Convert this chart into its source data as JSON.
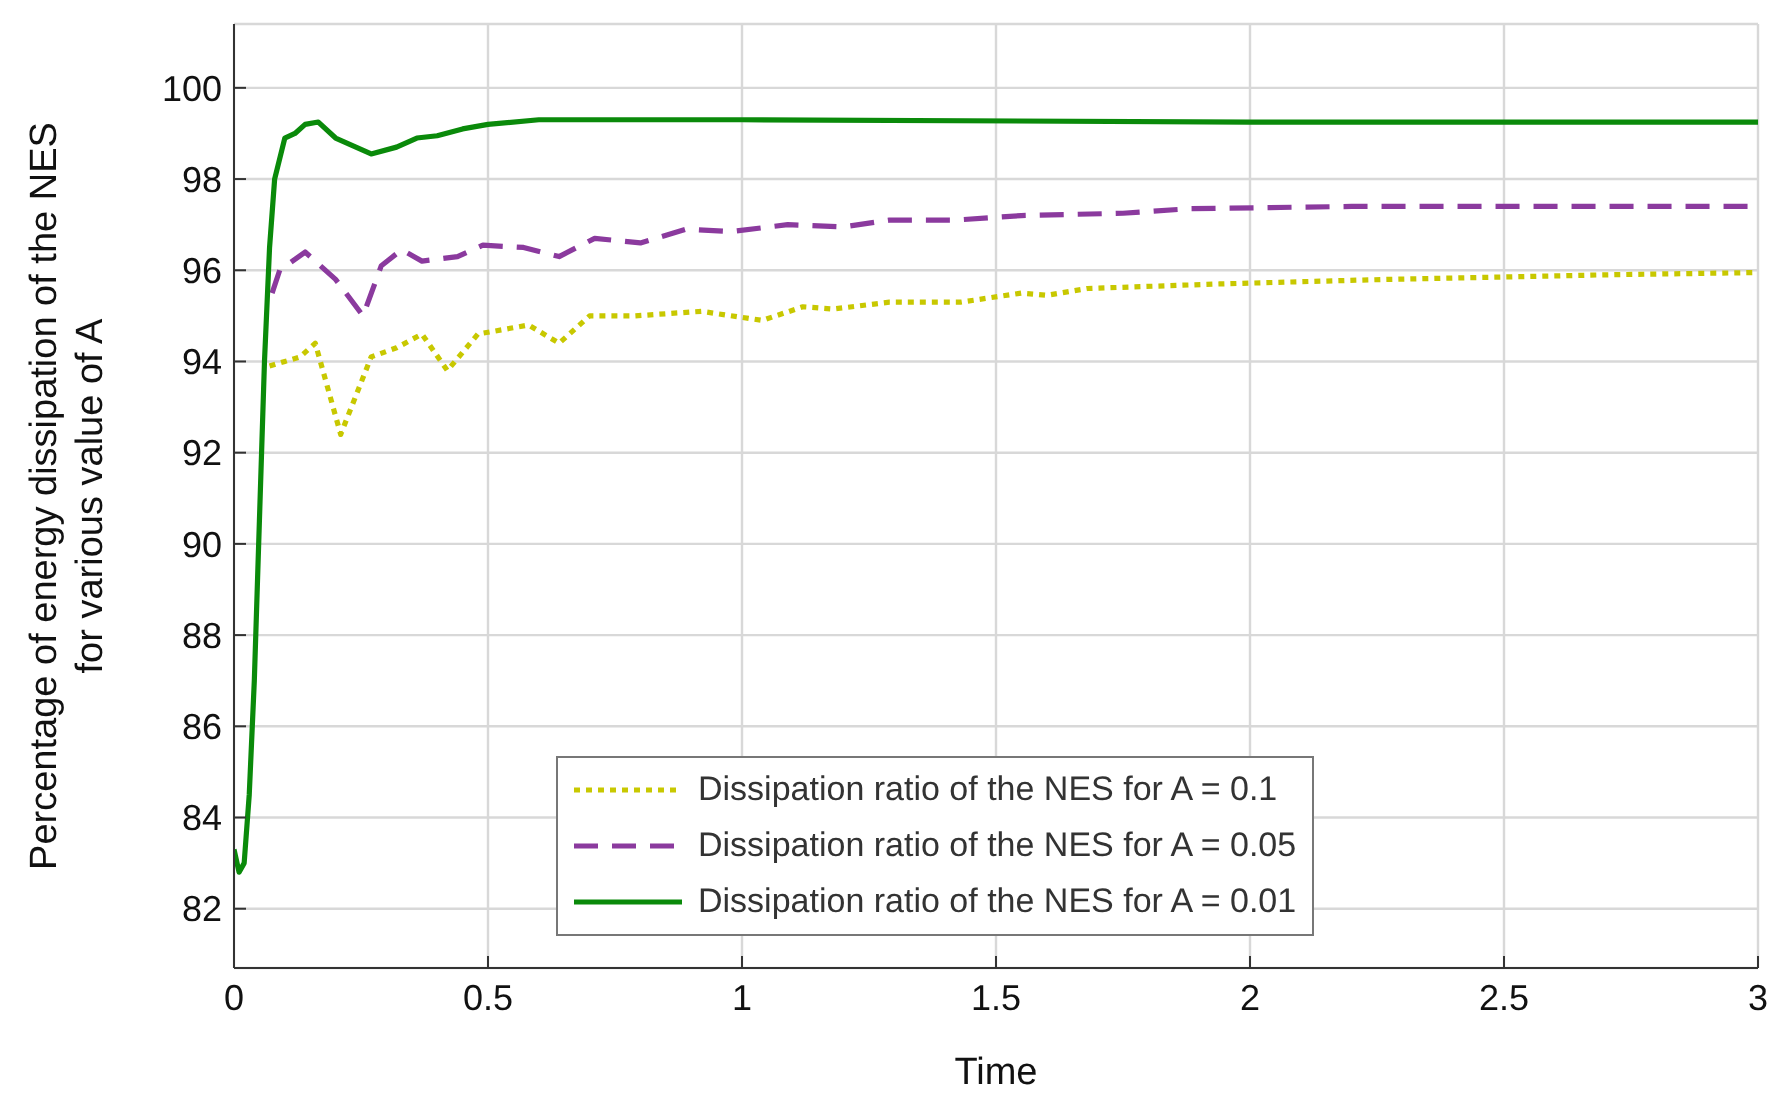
{
  "chart_data": {
    "type": "line",
    "xlabel": "Time",
    "ylabel": "Percentage of energy dissipation of the NES\nfor various value of A",
    "xlim": [
      0,
      3
    ],
    "xticks": [
      0,
      0.5,
      1,
      1.5,
      2,
      2.5,
      3
    ],
    "ylim": [
      80.7,
      101.4
    ],
    "yticks": [
      82,
      84,
      86,
      88,
      90,
      92,
      94,
      96,
      98,
      100
    ],
    "grid": true,
    "legend": "bottom",
    "series": [
      {
        "name": "Dissipation ratio of the NES for A = 0.1",
        "color": "#c8c800",
        "line_style": "dotted",
        "x": [
          0.07,
          0.1,
          0.13,
          0.16,
          0.21,
          0.27,
          0.32,
          0.37,
          0.42,
          0.48,
          0.58,
          0.64,
          0.7,
          0.79,
          0.92,
          1.04,
          1.12,
          1.18,
          1.29,
          1.43,
          1.55,
          1.6,
          1.68,
          1.94,
          2.27,
          2.49,
          2.7,
          3
        ],
        "values": [
          93.9,
          94.0,
          94.1,
          94.4,
          92.4,
          94.1,
          94.3,
          94.6,
          93.8,
          94.6,
          94.8,
          94.4,
          95.0,
          95.0,
          95.1,
          94.9,
          95.2,
          95.15,
          95.3,
          95.3,
          95.5,
          95.45,
          95.6,
          95.7,
          95.8,
          95.85,
          95.9,
          95.95
        ]
      },
      {
        "name": "Dissipation ratio of the NES for A = 0.05",
        "color": "#8b3a9e",
        "line_style": "dashed",
        "x": [
          0.075,
          0.09,
          0.14,
          0.2,
          0.254,
          0.29,
          0.33,
          0.37,
          0.44,
          0.49,
          0.57,
          0.64,
          0.71,
          0.8,
          0.89,
          0.98,
          1.09,
          1.2,
          1.29,
          1.42,
          1.55,
          1.75,
          1.88,
          2.2,
          3
        ],
        "values": [
          95.5,
          96.0,
          96.4,
          95.8,
          95.0,
          96.1,
          96.45,
          96.2,
          96.3,
          96.55,
          96.5,
          96.3,
          96.7,
          96.6,
          96.9,
          96.85,
          97.0,
          96.95,
          97.1,
          97.1,
          97.2,
          97.25,
          97.35,
          97.4,
          97.4
        ]
      },
      {
        "name": "Dissipation ratio of the NES for A = 0.01",
        "color": "#0a8a0a",
        "line_style": "solid",
        "x": [
          0,
          0.01,
          0.02,
          0.03,
          0.04,
          0.05,
          0.06,
          0.07,
          0.08,
          0.1,
          0.12,
          0.14,
          0.166,
          0.2,
          0.27,
          0.32,
          0.36,
          0.4,
          0.45,
          0.5,
          0.6,
          1,
          2,
          3
        ],
        "values": [
          83.3,
          82.8,
          83.0,
          84.5,
          87.0,
          90.5,
          94.0,
          96.5,
          98.0,
          98.9,
          99.0,
          99.2,
          99.25,
          98.9,
          98.55,
          98.7,
          98.9,
          98.95,
          99.1,
          99.2,
          99.3,
          99.3,
          99.25,
          99.25
        ]
      }
    ]
  }
}
